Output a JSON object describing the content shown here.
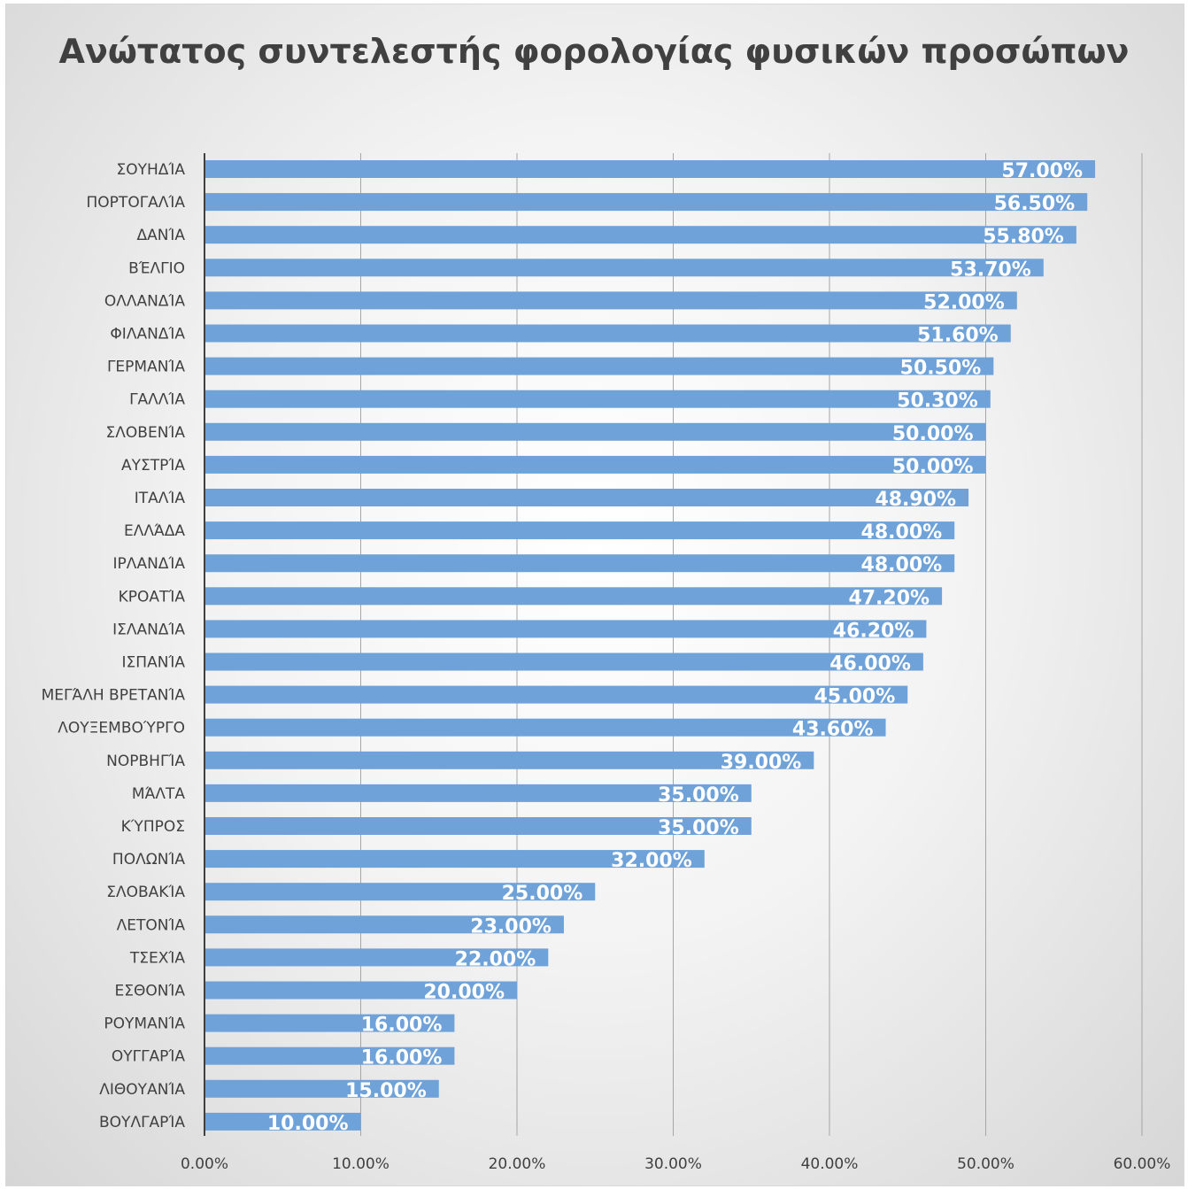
{
  "chart_data": {
    "type": "bar",
    "orientation": "horizontal",
    "title": "Ανώτατος συντελεστής φορολογίας φυσικών προσώπων",
    "categories": [
      "ΣΟΥΗΔΊΑ",
      "ΠΟΡΤΟΓΑΛΊΑ",
      "ΔΑΝΊΑ",
      "ΒΈΛΓΙΟ",
      "ΟΛΛΑΝΔΊΑ",
      "ΦΙΛΑΝΔΊΑ",
      "ΓΕΡΜΑΝΊΑ",
      "ΓΑΛΛΊΑ",
      "ΣΛΟΒΕΝΊΑ",
      "ΑΥΣΤΡΊΑ",
      "ΙΤΑΛΊΑ",
      "ΕΛΛΆΔΑ",
      "ΙΡΛΑΝΔΊΑ",
      "ΚΡΟΑΤΊΑ",
      "ΙΣΛΑΝΔΊΑ",
      "ΙΣΠΑΝΊΑ",
      "ΜΕΓΆΛΗ ΒΡΕΤΑΝΊΑ",
      "ΛΟΥΞΕΜΒΟΎΡΓΟ",
      "ΝΟΡΒΗΓΊΑ",
      "ΜΆΛΤΑ",
      "ΚΎΠΡΟΣ",
      "ΠΟΛΩΝΊΑ",
      "ΣΛΟΒΑΚΊΑ",
      "ΛΕΤΟΝΊΑ",
      "ΤΣΕΧΊΑ",
      "ΕΣΘΟΝΊΑ",
      "ΡΟΥΜΑΝΊΑ",
      "ΟΥΓΓΑΡΊΑ",
      "ΛΙΘΟΥΑΝΊΑ",
      "ΒΟΥΛΓΑΡΊΑ"
    ],
    "values": [
      57.0,
      56.5,
      55.8,
      53.7,
      52.0,
      51.6,
      50.5,
      50.3,
      50.0,
      50.0,
      48.9,
      48.0,
      48.0,
      47.2,
      46.2,
      46.0,
      45.0,
      43.6,
      39.0,
      35.0,
      35.0,
      32.0,
      25.0,
      23.0,
      22.0,
      20.0,
      16.0,
      16.0,
      15.0,
      10.0
    ],
    "data_labels": [
      "57.00%",
      "56.50%",
      "55.80%",
      "53.70%",
      "52.00%",
      "51.60%",
      "50.50%",
      "50.30%",
      "50.00%",
      "50.00%",
      "48.90%",
      "48.00%",
      "48.00%",
      "47.20%",
      "46.20%",
      "46.00%",
      "45.00%",
      "43.60%",
      "39.00%",
      "35.00%",
      "35.00%",
      "32.00%",
      "25.00%",
      "23.00%",
      "22.00%",
      "20.00%",
      "16.00%",
      "16.00%",
      "15.00%",
      "10.00%"
    ],
    "xlim": [
      0,
      60
    ],
    "xticks": [
      0,
      10,
      20,
      30,
      40,
      50,
      60
    ],
    "xtick_labels": [
      "0.00%",
      "10.00%",
      "20.00%",
      "30.00%",
      "40.00%",
      "50.00%",
      "60.00%"
    ],
    "xlabel": "",
    "ylabel": "",
    "grid": "vertical",
    "legend": "none",
    "bar_color": "#6fa2d8",
    "gridline_color": "#a6a6a6",
    "axis_color": "#404040"
  }
}
